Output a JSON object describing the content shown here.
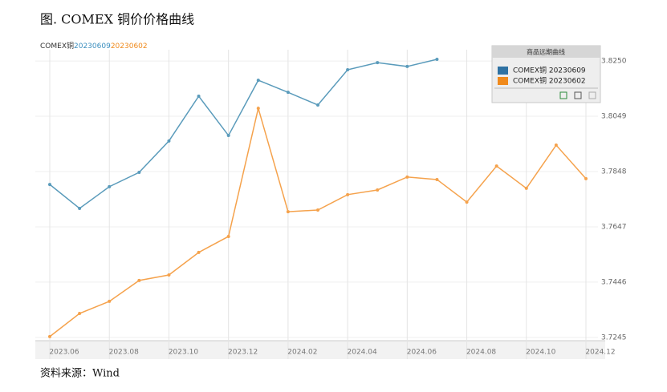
{
  "chart_data": {
    "type": "line",
    "title": "图. COMEX 铜价价格曲线",
    "subtitle_parts": [
      "COMEX铜",
      "20230609",
      "20230602"
    ],
    "legend_title": "商品远期曲线",
    "source": "资料来源：Wind",
    "categories": [
      "2023.06",
      null,
      "2023.08",
      null,
      "2023.10",
      null,
      "2023.12",
      null,
      "2024.02",
      null,
      "2024.04",
      null,
      "2024.06",
      null,
      "2024.08",
      null,
      "2024.10",
      null,
      "2024.12"
    ],
    "series": [
      {
        "name": "COMEX铜 20230609",
        "color": "#5a9bbb",
        "legend_color": "#2f72a3",
        "values": [
          3.7801,
          3.7714,
          3.7793,
          3.7845,
          3.7959,
          3.8122,
          3.7979,
          3.818,
          3.8136,
          3.809,
          3.8218,
          3.8244,
          3.823,
          3.8256,
          null,
          null,
          null,
          null,
          null
        ]
      },
      {
        "name": "COMEX铜 20230602",
        "color": "#f5a24c",
        "legend_color": "#f08a1c",
        "values": [
          3.7248,
          3.7332,
          3.7376,
          3.7452,
          3.7472,
          3.7554,
          3.7612,
          3.8078,
          3.7702,
          3.7708,
          3.7764,
          3.7781,
          3.7828,
          3.7819,
          3.7737,
          3.7868,
          3.7787,
          3.7944,
          3.7822
        ]
      }
    ],
    "ylim": [
      3.7233,
      3.8291
    ],
    "yticks": [
      3.7245,
      3.7446,
      3.7647,
      3.7848,
      3.8049,
      {
        "value": 3.825,
        "label": "3.8250"
      }
    ],
    "grid": true
  }
}
